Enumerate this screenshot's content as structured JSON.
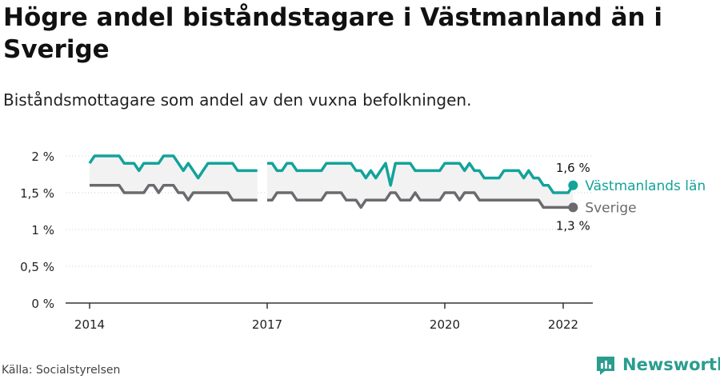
{
  "title": "Högre andel biståndstagare i Västmanland än i Sverige",
  "subtitle": "Biståndsmottagare som andel av den vuxna befolkningen.",
  "source": "Källa: Socialstyrelsen",
  "brand": "Newsworthy",
  "colors": {
    "vastmanland": "#13a39a",
    "sverige": "#6b6b6f",
    "band": "#f2f2f2",
    "axis": "#333333"
  },
  "chart_data": {
    "type": "line",
    "title": "Högre andel biståndstagare i Västmanland än i Sverige",
    "subtitle": "Biståndsmottagare som andel av den vuxna befolkningen.",
    "ylim": [
      0,
      2
    ],
    "yticks": [
      0,
      0.5,
      1,
      1.5,
      2
    ],
    "ytick_labels": [
      "0 %",
      "0,5 %",
      "1 %",
      "1,5 %",
      "2 %"
    ],
    "xlim": [
      "2014-01",
      "2022-07"
    ],
    "xticks": [
      "2014-01",
      "2017-01",
      "2020-01",
      "2022-01"
    ],
    "xtick_labels": [
      "2014",
      "2017",
      "2020",
      "2022"
    ],
    "grid": true,
    "series": [
      {
        "name": "Västmanlands län",
        "color": "#13a39a",
        "end_label": "1,6 %",
        "segments": [
          [
            [
              "2014-01",
              1.9
            ],
            [
              "2014-02",
              2.0
            ],
            [
              "2014-03",
              2.0
            ],
            [
              "2014-04",
              2.0
            ],
            [
              "2014-05",
              2.0
            ],
            [
              "2014-06",
              2.0
            ],
            [
              "2014-07",
              2.0
            ],
            [
              "2014-08",
              1.9
            ],
            [
              "2014-09",
              1.9
            ],
            [
              "2014-10",
              1.9
            ],
            [
              "2014-11",
              1.8
            ],
            [
              "2014-12",
              1.9
            ],
            [
              "2015-01",
              1.9
            ],
            [
              "2015-02",
              1.9
            ],
            [
              "2015-03",
              1.9
            ],
            [
              "2015-04",
              2.0
            ],
            [
              "2015-05",
              2.0
            ],
            [
              "2015-06",
              2.0
            ],
            [
              "2015-07",
              1.9
            ],
            [
              "2015-08",
              1.8
            ],
            [
              "2015-09",
              1.9
            ],
            [
              "2015-10",
              1.8
            ],
            [
              "2015-11",
              1.7
            ],
            [
              "2015-12",
              1.8
            ],
            [
              "2016-01",
              1.9
            ],
            [
              "2016-02",
              1.9
            ],
            [
              "2016-03",
              1.9
            ],
            [
              "2016-04",
              1.9
            ],
            [
              "2016-05",
              1.9
            ],
            [
              "2016-06",
              1.9
            ],
            [
              "2016-07",
              1.8
            ],
            [
              "2016-08",
              1.8
            ],
            [
              "2016-09",
              1.8
            ],
            [
              "2016-10",
              1.8
            ],
            [
              "2016-11",
              1.8
            ]
          ],
          [
            [
              "2017-01",
              1.9
            ],
            [
              "2017-02",
              1.9
            ],
            [
              "2017-03",
              1.8
            ],
            [
              "2017-04",
              1.8
            ],
            [
              "2017-05",
              1.9
            ],
            [
              "2017-06",
              1.9
            ],
            [
              "2017-07",
              1.8
            ],
            [
              "2017-08",
              1.8
            ],
            [
              "2017-09",
              1.8
            ],
            [
              "2017-10",
              1.8
            ],
            [
              "2017-11",
              1.8
            ],
            [
              "2017-12",
              1.8
            ],
            [
              "2018-01",
              1.9
            ],
            [
              "2018-02",
              1.9
            ],
            [
              "2018-03",
              1.9
            ],
            [
              "2018-04",
              1.9
            ],
            [
              "2018-05",
              1.9
            ],
            [
              "2018-06",
              1.9
            ],
            [
              "2018-07",
              1.8
            ],
            [
              "2018-08",
              1.8
            ],
            [
              "2018-09",
              1.7
            ],
            [
              "2018-10",
              1.8
            ],
            [
              "2018-11",
              1.7
            ],
            [
              "2018-12",
              1.8
            ],
            [
              "2019-01",
              1.9
            ],
            [
              "2019-02",
              1.6
            ],
            [
              "2019-03",
              1.9
            ],
            [
              "2019-04",
              1.9
            ],
            [
              "2019-05",
              1.9
            ],
            [
              "2019-06",
              1.9
            ],
            [
              "2019-07",
              1.8
            ],
            [
              "2019-08",
              1.8
            ],
            [
              "2019-09",
              1.8
            ],
            [
              "2019-10",
              1.8
            ],
            [
              "2019-11",
              1.8
            ],
            [
              "2019-12",
              1.8
            ],
            [
              "2020-01",
              1.9
            ],
            [
              "2020-02",
              1.9
            ],
            [
              "2020-03",
              1.9
            ],
            [
              "2020-04",
              1.9
            ],
            [
              "2020-05",
              1.8
            ],
            [
              "2020-06",
              1.9
            ],
            [
              "2020-07",
              1.8
            ],
            [
              "2020-08",
              1.8
            ],
            [
              "2020-09",
              1.7
            ],
            [
              "2020-10",
              1.7
            ],
            [
              "2020-11",
              1.7
            ],
            [
              "2020-12",
              1.7
            ],
            [
              "2021-01",
              1.8
            ],
            [
              "2021-02",
              1.8
            ],
            [
              "2021-03",
              1.8
            ],
            [
              "2021-04",
              1.8
            ],
            [
              "2021-05",
              1.7
            ],
            [
              "2021-06",
              1.8
            ],
            [
              "2021-07",
              1.7
            ],
            [
              "2021-08",
              1.7
            ],
            [
              "2021-09",
              1.6
            ],
            [
              "2021-10",
              1.6
            ],
            [
              "2021-11",
              1.5
            ],
            [
              "2021-12",
              1.5
            ],
            [
              "2022-01",
              1.5
            ],
            [
              "2022-02",
              1.5
            ],
            [
              "2022-03",
              1.6
            ]
          ]
        ]
      },
      {
        "name": "Sverige",
        "color": "#6b6b6f",
        "end_label": "1,3 %",
        "segments": [
          [
            [
              "2014-01",
              1.6
            ],
            [
              "2014-02",
              1.6
            ],
            [
              "2014-03",
              1.6
            ],
            [
              "2014-04",
              1.6
            ],
            [
              "2014-05",
              1.6
            ],
            [
              "2014-06",
              1.6
            ],
            [
              "2014-07",
              1.6
            ],
            [
              "2014-08",
              1.5
            ],
            [
              "2014-09",
              1.5
            ],
            [
              "2014-10",
              1.5
            ],
            [
              "2014-11",
              1.5
            ],
            [
              "2014-12",
              1.5
            ],
            [
              "2015-01",
              1.6
            ],
            [
              "2015-02",
              1.6
            ],
            [
              "2015-03",
              1.5
            ],
            [
              "2015-04",
              1.6
            ],
            [
              "2015-05",
              1.6
            ],
            [
              "2015-06",
              1.6
            ],
            [
              "2015-07",
              1.5
            ],
            [
              "2015-08",
              1.5
            ],
            [
              "2015-09",
              1.4
            ],
            [
              "2015-10",
              1.5
            ],
            [
              "2015-11",
              1.5
            ],
            [
              "2015-12",
              1.5
            ],
            [
              "2016-01",
              1.5
            ],
            [
              "2016-02",
              1.5
            ],
            [
              "2016-03",
              1.5
            ],
            [
              "2016-04",
              1.5
            ],
            [
              "2016-05",
              1.5
            ],
            [
              "2016-06",
              1.4
            ],
            [
              "2016-07",
              1.4
            ],
            [
              "2016-08",
              1.4
            ],
            [
              "2016-09",
              1.4
            ],
            [
              "2016-10",
              1.4
            ],
            [
              "2016-11",
              1.4
            ]
          ],
          [
            [
              "2017-01",
              1.4
            ],
            [
              "2017-02",
              1.4
            ],
            [
              "2017-03",
              1.5
            ],
            [
              "2017-04",
              1.5
            ],
            [
              "2017-05",
              1.5
            ],
            [
              "2017-06",
              1.5
            ],
            [
              "2017-07",
              1.4
            ],
            [
              "2017-08",
              1.4
            ],
            [
              "2017-09",
              1.4
            ],
            [
              "2017-10",
              1.4
            ],
            [
              "2017-11",
              1.4
            ],
            [
              "2017-12",
              1.4
            ],
            [
              "2018-01",
              1.5
            ],
            [
              "2018-02",
              1.5
            ],
            [
              "2018-03",
              1.5
            ],
            [
              "2018-04",
              1.5
            ],
            [
              "2018-05",
              1.4
            ],
            [
              "2018-06",
              1.4
            ],
            [
              "2018-07",
              1.4
            ],
            [
              "2018-08",
              1.3
            ],
            [
              "2018-09",
              1.4
            ],
            [
              "2018-10",
              1.4
            ],
            [
              "2018-11",
              1.4
            ],
            [
              "2018-12",
              1.4
            ],
            [
              "2019-01",
              1.4
            ],
            [
              "2019-02",
              1.5
            ],
            [
              "2019-03",
              1.5
            ],
            [
              "2019-04",
              1.4
            ],
            [
              "2019-05",
              1.4
            ],
            [
              "2019-06",
              1.4
            ],
            [
              "2019-07",
              1.5
            ],
            [
              "2019-08",
              1.4
            ],
            [
              "2019-09",
              1.4
            ],
            [
              "2019-10",
              1.4
            ],
            [
              "2019-11",
              1.4
            ],
            [
              "2019-12",
              1.4
            ],
            [
              "2020-01",
              1.5
            ],
            [
              "2020-02",
              1.5
            ],
            [
              "2020-03",
              1.5
            ],
            [
              "2020-04",
              1.4
            ],
            [
              "2020-05",
              1.5
            ],
            [
              "2020-06",
              1.5
            ],
            [
              "2020-07",
              1.5
            ],
            [
              "2020-08",
              1.4
            ],
            [
              "2020-09",
              1.4
            ],
            [
              "2020-10",
              1.4
            ],
            [
              "2020-11",
              1.4
            ],
            [
              "2020-12",
              1.4
            ],
            [
              "2021-01",
              1.4
            ],
            [
              "2021-02",
              1.4
            ],
            [
              "2021-03",
              1.4
            ],
            [
              "2021-04",
              1.4
            ],
            [
              "2021-05",
              1.4
            ],
            [
              "2021-06",
              1.4
            ],
            [
              "2021-07",
              1.4
            ],
            [
              "2021-08",
              1.4
            ],
            [
              "2021-09",
              1.3
            ],
            [
              "2021-10",
              1.3
            ],
            [
              "2021-11",
              1.3
            ],
            [
              "2021-12",
              1.3
            ],
            [
              "2022-01",
              1.3
            ],
            [
              "2022-02",
              1.3
            ],
            [
              "2022-03",
              1.3
            ]
          ]
        ]
      }
    ]
  }
}
